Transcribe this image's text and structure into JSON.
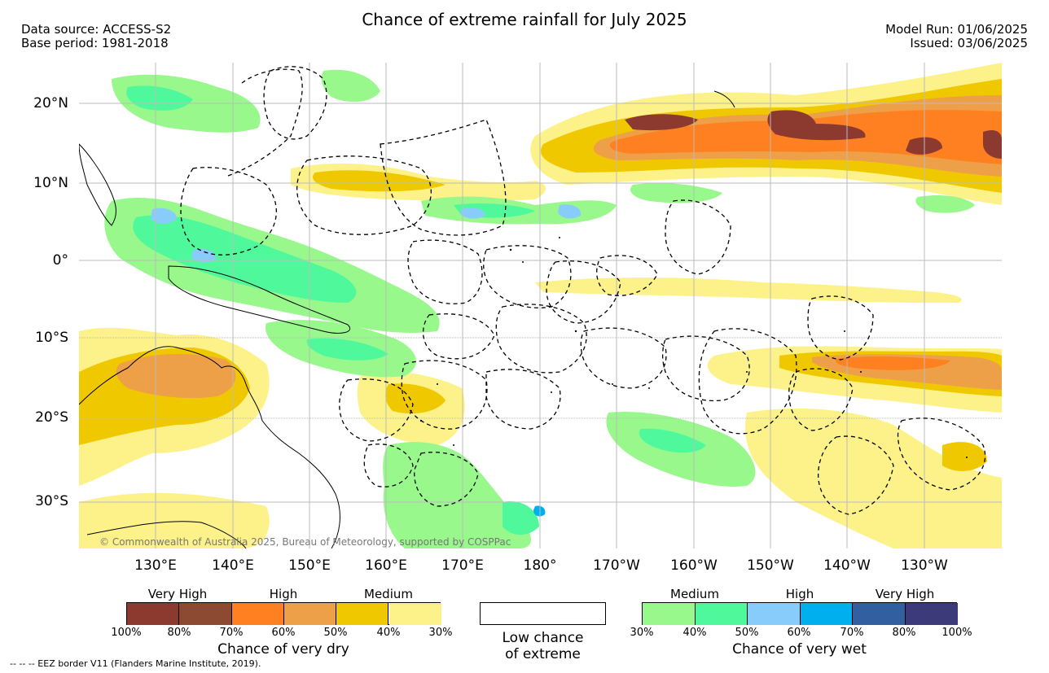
{
  "header": {
    "title": "Chance of extreme rainfall for July 2025",
    "data_source": "Data source: ACCESS-S2",
    "base_period": "Base period: 1981-2018",
    "model_run": "Model Run: 01/06/2025",
    "issued": "Issued: 03/06/2025"
  },
  "map": {
    "lat_labels": [
      "20°N",
      "10°N",
      "0°",
      "10°S",
      "20°S",
      "30°S"
    ],
    "lon_labels": [
      "130°E",
      "140°E",
      "150°E",
      "160°E",
      "170°E",
      "180°",
      "170°W",
      "160°W",
      "150°W",
      "140°W",
      "130°W"
    ],
    "copyright": "© Commonwealth of Australia 2025, Bureau of Meteorology, supported by COSPPac",
    "colors": {
      "ocean": "#ffffff",
      "grid": "#bbbbbb",
      "dry_30_40": "#fdf28a",
      "dry_40_50": "#f0c800",
      "dry_50_60": "#eda048",
      "dry_60_70": "#ff8020",
      "dry_70_80": "#8c4a32",
      "dry_80_100": "#8c3a30",
      "wet_30_40": "#98f88c",
      "wet_40_50": "#50f89c",
      "wet_50_60": "#88ccfc",
      "wet_60_70": "#00b0ee"
    }
  },
  "legend": {
    "dry": {
      "category_labels": [
        "Very High",
        "High",
        "Medium"
      ],
      "ticks": [
        "100%",
        "80%",
        "70%",
        "60%",
        "50%",
        "40%",
        "30%"
      ],
      "colors": [
        "#8c3a30",
        "#8c4a32",
        "#ff8020",
        "#eda048",
        "#f0c800",
        "#fdf28a"
      ],
      "title": "Chance of very dry"
    },
    "neutral": {
      "line1": "Low chance",
      "line2": "of extreme"
    },
    "wet": {
      "category_labels": [
        "Medium",
        "High",
        "Very High"
      ],
      "ticks": [
        "30%",
        "40%",
        "50%",
        "60%",
        "70%",
        "80%",
        "100%"
      ],
      "colors": [
        "#98f88c",
        "#50f89c",
        "#88ccfc",
        "#00b0ee",
        "#325fa0",
        "#3c3a78"
      ],
      "title": "Chance of very wet"
    }
  },
  "footer": {
    "eez_note": "-- -- -- EEZ border V11 (Flanders Marine Institute, 2019)."
  }
}
